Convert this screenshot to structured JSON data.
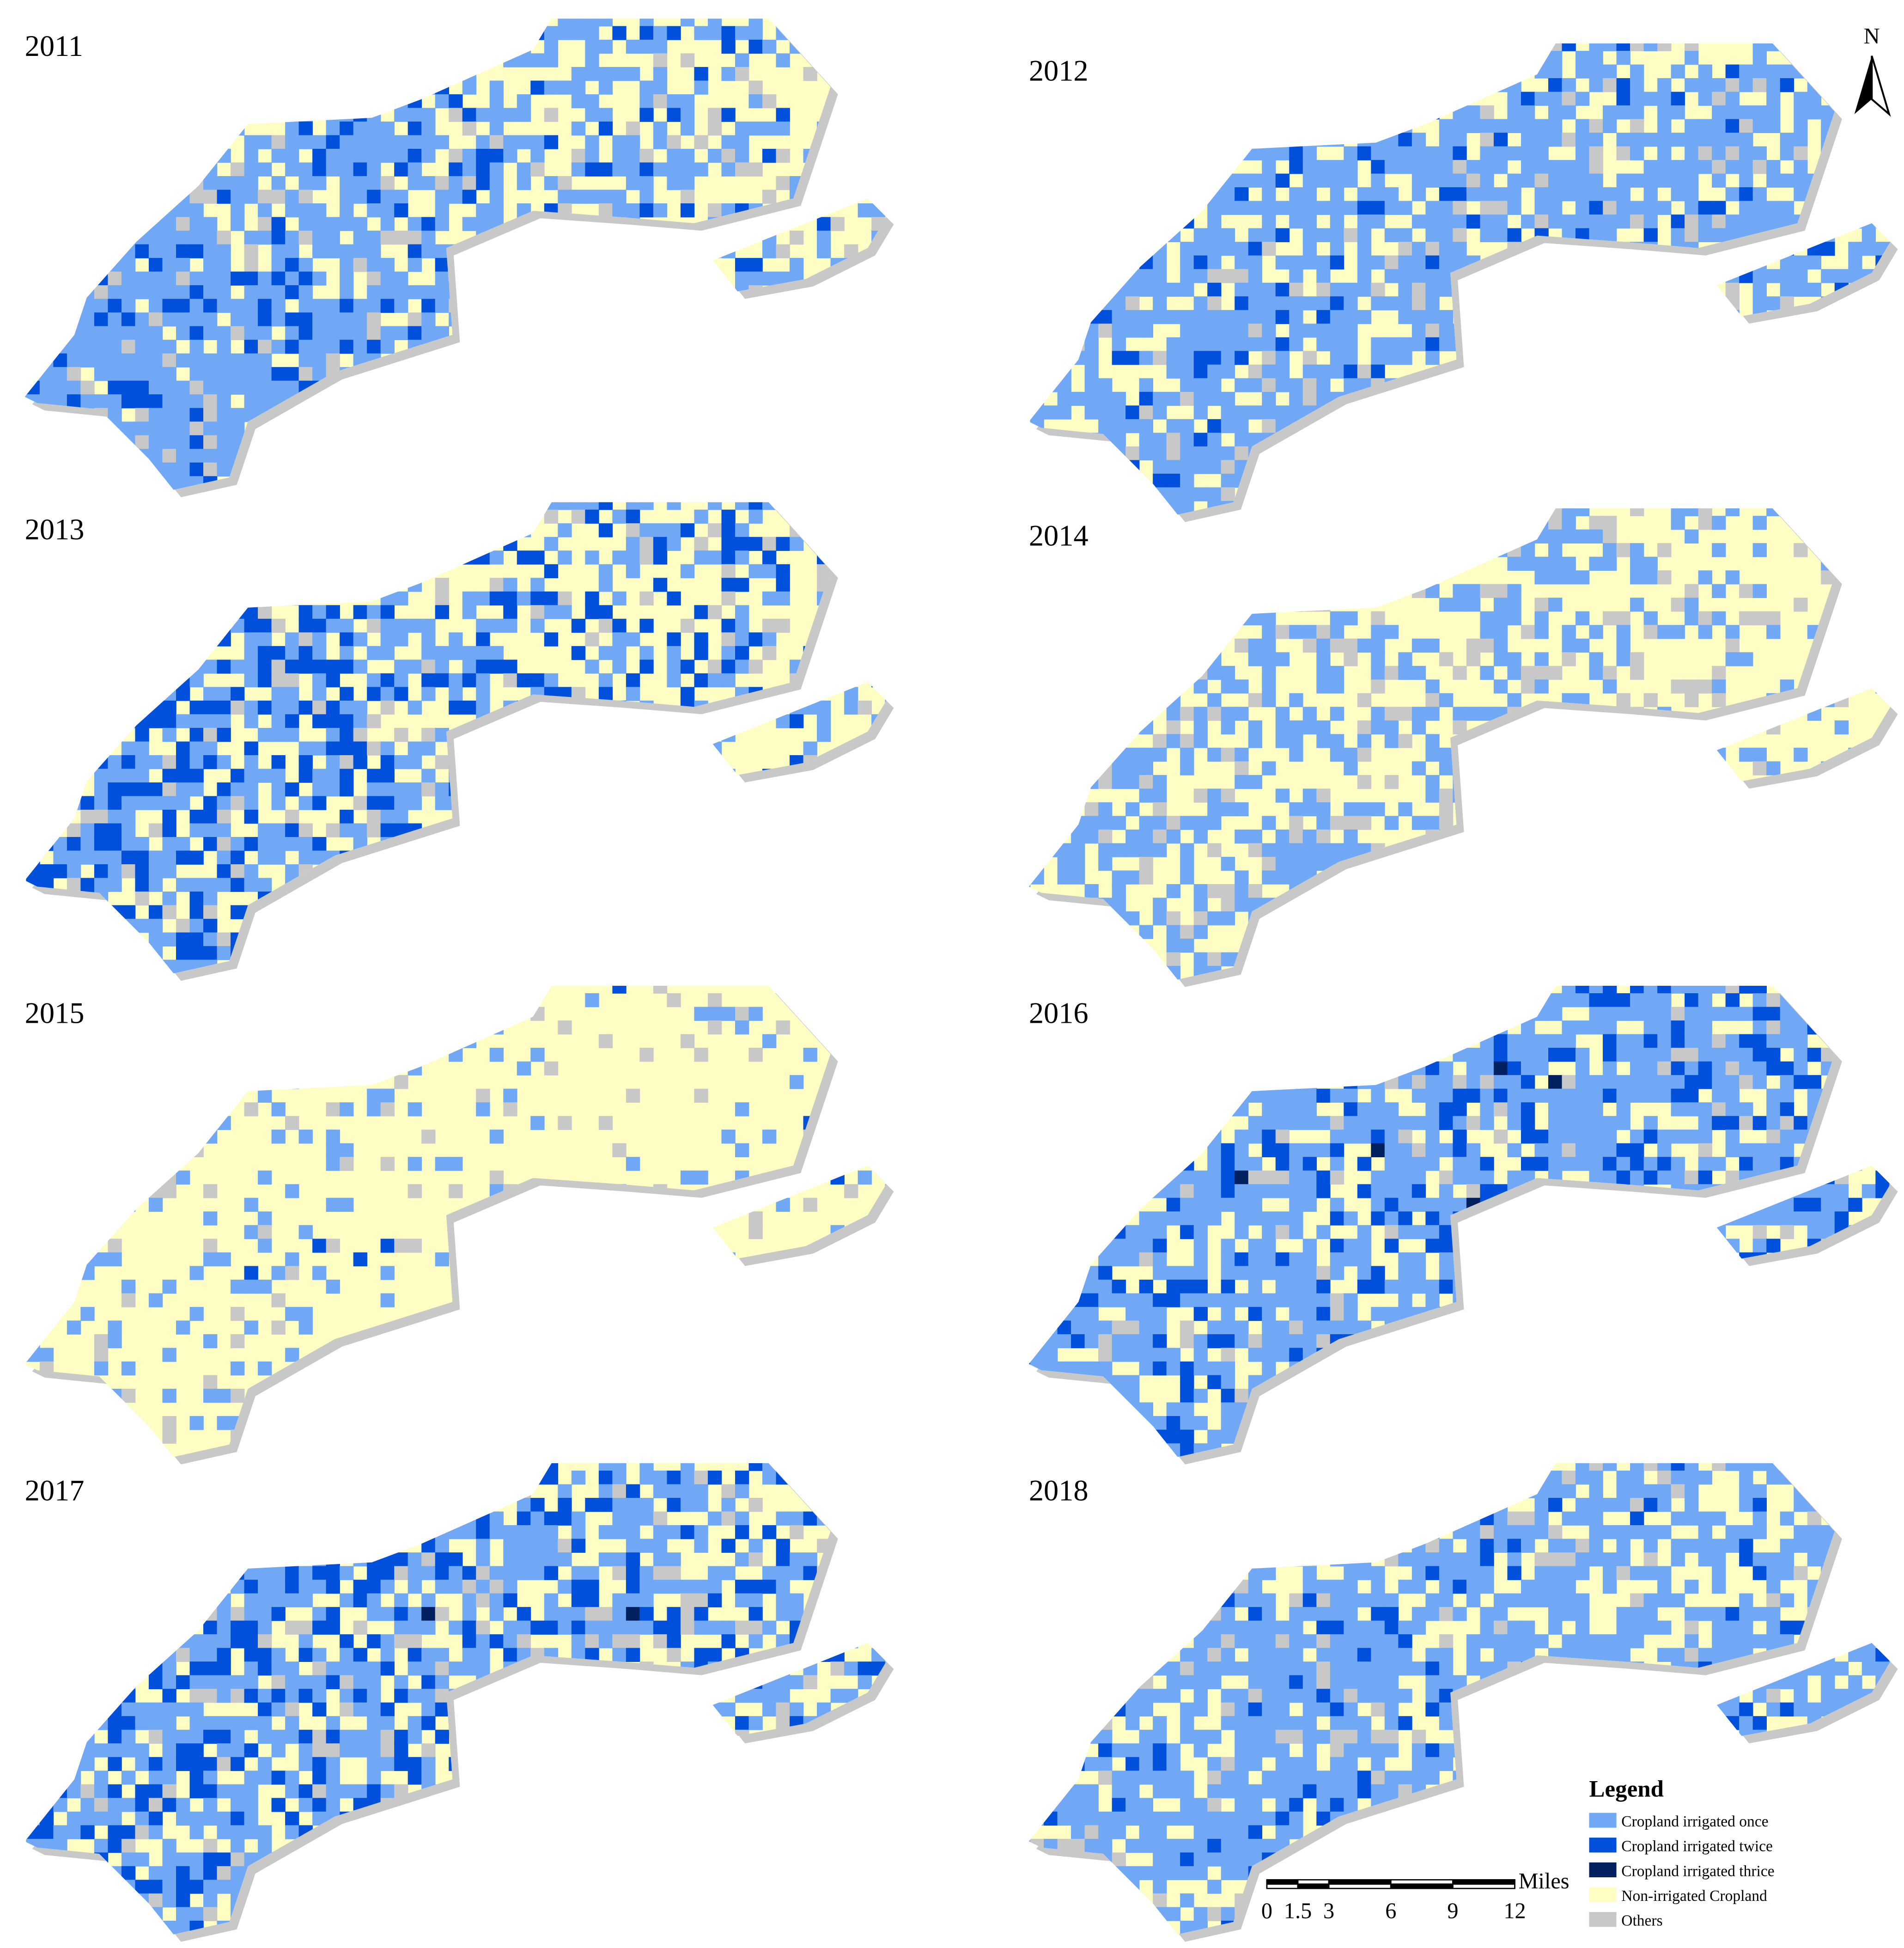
{
  "panels": [
    {
      "year": "2011"
    },
    {
      "year": "2012"
    },
    {
      "year": "2013"
    },
    {
      "year": "2014"
    },
    {
      "year": "2015"
    },
    {
      "year": "2016"
    },
    {
      "year": "2017"
    },
    {
      "year": "2018"
    }
  ],
  "north_arrow": {
    "label": "N"
  },
  "legend": {
    "title": "Legend",
    "items": [
      {
        "label": "Cropland  irrigated once",
        "color": "#70a8f5"
      },
      {
        "label": "Cropland irrigated twice",
        "color": "#0050dc"
      },
      {
        "label": "Cropland  irrigated thrice",
        "color": "#002060"
      },
      {
        "label": "Non-irrigated Cropland",
        "color": "#fdfdc4"
      },
      {
        "label": "Others",
        "color": "#c8c8c8"
      }
    ]
  },
  "scale_bar": {
    "unit": "Miles",
    "ticks": [
      0,
      1.5,
      3,
      6,
      9,
      12
    ]
  }
}
